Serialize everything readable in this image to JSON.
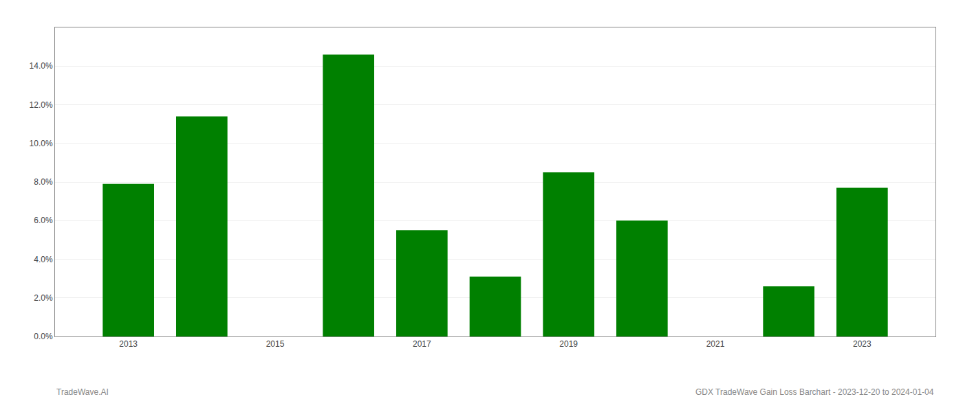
{
  "chart_data": {
    "type": "bar",
    "x": [
      2013,
      2014,
      2016,
      2017,
      2018,
      2019,
      2020,
      2022,
      2023
    ],
    "values": [
      0.079,
      0.114,
      0.146,
      0.055,
      0.031,
      0.085,
      0.06,
      0.026,
      0.077
    ],
    "color": "#008000",
    "xlim": [
      2012,
      2024
    ],
    "xticks": [
      2013,
      2015,
      2017,
      2019,
      2021,
      2023
    ],
    "ylim": [
      0,
      0.16
    ],
    "yticks": [
      {
        "value": 0.0,
        "label": "0.0%"
      },
      {
        "value": 0.02,
        "label": "2.0%"
      },
      {
        "value": 0.04,
        "label": "4.0%"
      },
      {
        "value": 0.06,
        "label": "6.0%"
      },
      {
        "value": 0.08,
        "label": "8.0%"
      },
      {
        "value": 0.1,
        "label": "10.0%"
      },
      {
        "value": 0.12,
        "label": "12.0%"
      },
      {
        "value": 0.14,
        "label": "14.0%"
      }
    ],
    "grid": true,
    "annotations": [
      "TradeWave.AI",
      "GDX TradeWave Gain Loss Barchart - 2023-12-20 to 2024-01-04"
    ]
  }
}
